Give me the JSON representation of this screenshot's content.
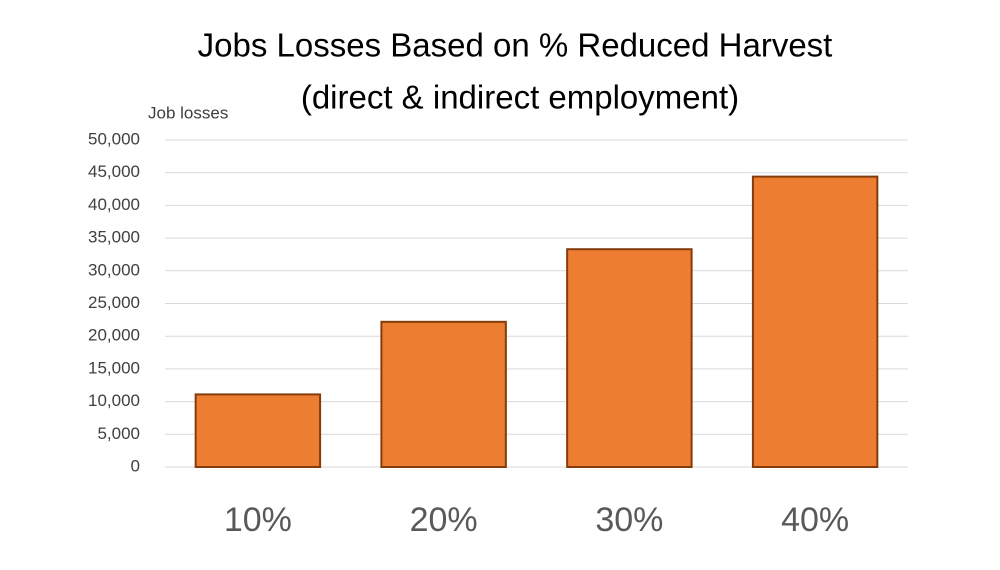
{
  "chart_data": {
    "type": "bar",
    "title": [
      "Jobs Losses Based on % Reduced Harvest",
      "(direct & indirect employment)"
    ],
    "y_label": "Job losses",
    "categories": [
      "10%",
      "20%",
      "30%",
      "40%"
    ],
    "values": [
      11100,
      22200,
      33300,
      44400
    ],
    "color": "#ed7d31",
    "edge_color": "#843c0c",
    "ylim": [
      0,
      50000
    ],
    "yticks": [
      0,
      {
        "value": 5000,
        "label": "5,000"
      },
      {
        "value": 10000,
        "label": "10,000"
      },
      {
        "value": 15000,
        "label": "15,000"
      },
      {
        "value": 20000,
        "label": "20,000"
      },
      {
        "value": 25000,
        "label": "25,000"
      },
      {
        "value": 30000,
        "label": "30,000"
      },
      {
        "value": 35000,
        "label": "35,000"
      },
      {
        "value": 40000,
        "label": "40,000"
      },
      {
        "value": 45000,
        "label": "45,000"
      },
      {
        "value": 50000,
        "label": "50,000"
      }
    ],
    "grid": true
  }
}
